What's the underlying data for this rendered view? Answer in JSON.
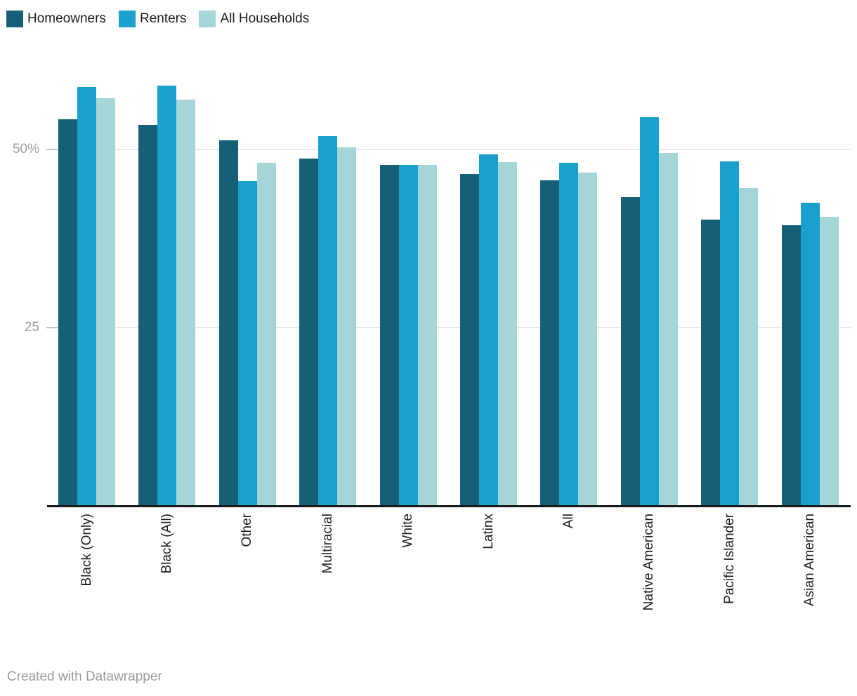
{
  "footer": {
    "credit": "Created with Datawrapper"
  },
  "colors": {
    "homeowners": "#175f77",
    "renters": "#1aa0cc",
    "all_households": "#a5d5d7",
    "axis_line": "#1a1a1a",
    "gridline": "#e9e9e9",
    "tick_label": "#a0a0a0",
    "category_label": "#1d1d1d",
    "footer_text": "#9b9b9b",
    "background": "#ffffff"
  },
  "chart_data": {
    "type": "bar",
    "title": "",
    "xlabel": "",
    "ylabel": "",
    "unit": "%",
    "grid": "horizontal",
    "legend_position": "top-left",
    "ylim": [
      0,
      62
    ],
    "yticks": [
      {
        "value": 25,
        "label": "25"
      },
      {
        "value": 50,
        "label": "50%"
      }
    ],
    "categories": [
      "Black (Only)",
      "Black (All)",
      "Other",
      "Multiracial",
      "White",
      "Latinx",
      "All",
      "Native American",
      "Pacific Islander",
      "Asian American"
    ],
    "series": [
      {
        "name": "Homeowners",
        "color": "#175f77",
        "values": [
          54.2,
          53.4,
          51.3,
          48.7,
          47.8,
          46.6,
          45.7,
          43.3,
          40.2,
          39.4
        ]
      },
      {
        "name": "Renters",
        "color": "#1aa0cc",
        "values": [
          58.8,
          59.0,
          45.6,
          51.9,
          47.8,
          49.3,
          48.1,
          54.5,
          48.3,
          42.5
        ]
      },
      {
        "name": "All Households",
        "color": "#a5d5d7",
        "values": [
          57.2,
          57.0,
          48.1,
          50.3,
          47.8,
          48.2,
          46.8,
          49.5,
          44.6,
          40.6
        ]
      }
    ]
  }
}
